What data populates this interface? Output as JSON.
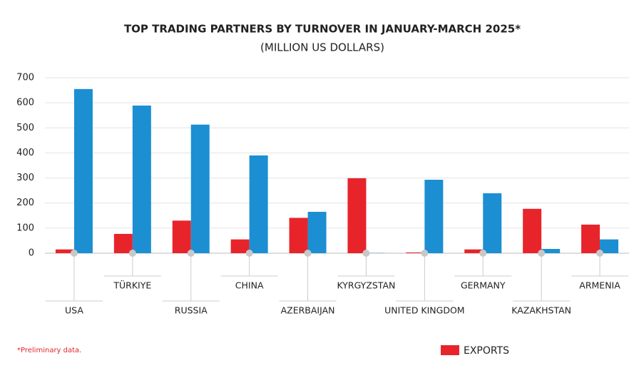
{
  "chart_data": {
    "type": "bar",
    "title": "TOP TRADING PARTNERS BY TURNOVER IN JANUARY-MARCH 2025*",
    "subtitle": "(MILLION US DOLLARS)",
    "note": "*Preliminary data.",
    "categories": [
      "USA",
      "TÜRKIYE",
      "RUSSIA",
      "CHINA",
      "AZERBAIJAN",
      "KYRGYZSTAN",
      "UNITED KINGDOM",
      "GERMANY",
      "KAZAKHSTAN",
      "ARMENIA"
    ],
    "series": [
      {
        "name": "EXPORTS",
        "color": "#e8242b",
        "values": [
          15,
          77,
          130,
          55,
          141,
          299,
          3,
          15,
          177,
          114
        ]
      },
      {
        "color": "#1b8fd2",
        "values": [
          655,
          589,
          513,
          390,
          165,
          1,
          293,
          239,
          17,
          55
        ]
      }
    ],
    "ylim": [
      0,
      700
    ],
    "yticks": [
      0,
      100,
      200,
      300,
      400,
      500,
      600,
      700
    ],
    "grid": true
  }
}
